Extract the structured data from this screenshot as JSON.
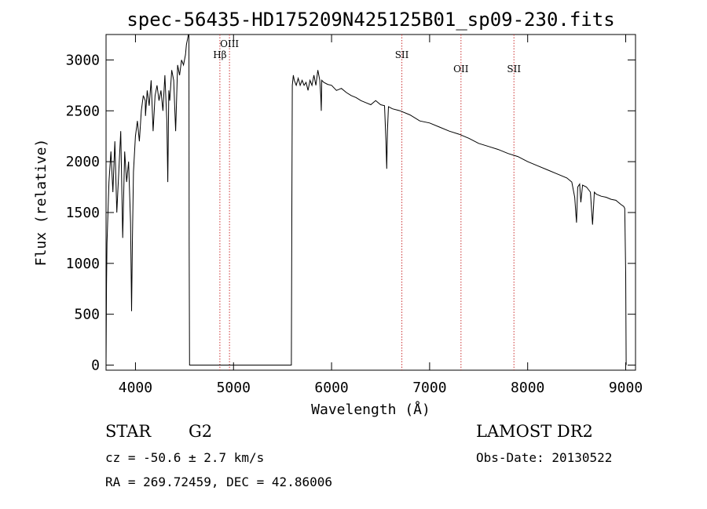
{
  "chart_data": {
    "type": "line",
    "title": "spec-56435-HD175209N425125B01_sp09-230.fits",
    "xlabel": "Wavelength (Å)",
    "ylabel": "Flux (relative)",
    "xlim": [
      3700,
      9100
    ],
    "ylim": [
      -50,
      3250
    ],
    "xticks": [
      4000,
      5000,
      6000,
      7000,
      8000,
      9000
    ],
    "yticks": [
      0,
      500,
      1000,
      1500,
      2000,
      2500,
      3000
    ],
    "grid": false,
    "line_color": "#000000",
    "marker_color": "#cc3333",
    "series": [
      {
        "name": "",
        "x": [
          3700,
          3705,
          3710,
          3730,
          3750,
          3770,
          3790,
          3810,
          3830,
          3850,
          3870,
          3890,
          3910,
          3930,
          3950,
          3960,
          3968,
          3980,
          4000,
          4020,
          4040,
          4060,
          4080,
          4100,
          4102,
          4120,
          4140,
          4160,
          4180,
          4200,
          4220,
          4240,
          4260,
          4280,
          4300,
          4320,
          4330,
          4340,
          4350,
          4370,
          4390,
          4410,
          4430,
          4450,
          4470,
          4490,
          4510,
          4520,
          4530,
          4540,
          4545,
          4548,
          4552,
          4555,
          5590,
          5595,
          5600,
          5610,
          5620,
          5640,
          5660,
          5680,
          5700,
          5720,
          5740,
          5760,
          5780,
          5800,
          5820,
          5840,
          5860,
          5880,
          5890,
          5895,
          5900,
          5920,
          5960,
          6000,
          6050,
          6100,
          6150,
          6200,
          6250,
          6300,
          6350,
          6400,
          6450,
          6500,
          6540,
          6555,
          6563,
          6570,
          6580,
          6620,
          6700,
          6800,
          6900,
          7000,
          7100,
          7200,
          7300,
          7400,
          7500,
          7600,
          7700,
          7800,
          7900,
          8000,
          8100,
          8200,
          8300,
          8400,
          8450,
          8480,
          8498,
          8510,
          8530,
          8542,
          8560,
          8600,
          8640,
          8662,
          8680,
          8700,
          8750,
          8800,
          8850,
          8900,
          8950,
          8980,
          8990,
          9000,
          9005
        ],
        "y": [
          0,
          800,
          1200,
          1800,
          2100,
          1700,
          2200,
          1500,
          1900,
          2300,
          1250,
          2100,
          1800,
          2000,
          1400,
          530,
          1200,
          1900,
          2250,
          2400,
          2200,
          2500,
          2650,
          2600,
          2450,
          2700,
          2550,
          2800,
          2300,
          2650,
          2750,
          2600,
          2700,
          2500,
          2850,
          2400,
          1800,
          2700,
          2600,
          2900,
          2800,
          2300,
          2950,
          2850,
          3000,
          2950,
          3050,
          3150,
          3200,
          3250,
          3250,
          1200,
          0,
          0,
          0,
          1500,
          2750,
          2850,
          2800,
          2750,
          2820,
          2750,
          2800,
          2750,
          2780,
          2700,
          2800,
          2750,
          2850,
          2750,
          2900,
          2800,
          2650,
          2500,
          2800,
          2780,
          2760,
          2750,
          2700,
          2720,
          2680,
          2650,
          2630,
          2600,
          2580,
          2560,
          2600,
          2560,
          2550,
          2200,
          1930,
          2300,
          2540,
          2520,
          2500,
          2460,
          2400,
          2380,
          2340,
          2300,
          2270,
          2230,
          2180,
          2150,
          2120,
          2080,
          2050,
          2000,
          1960,
          1920,
          1880,
          1840,
          1800,
          1650,
          1400,
          1750,
          1780,
          1600,
          1770,
          1750,
          1700,
          1380,
          1700,
          1680,
          1660,
          1650,
          1630,
          1620,
          1580,
          1560,
          1540,
          900,
          0
        ]
      }
    ],
    "annotations": [
      {
        "label": "Hβ",
        "x": 4861
      },
      {
        "label": "OIII",
        "x": 4959
      },
      {
        "label": "SII",
        "x": 6717
      },
      {
        "label": "OII",
        "x": 7320
      },
      {
        "label": "SII",
        "x": 7860
      }
    ]
  },
  "info": {
    "object_type": "STAR",
    "subclass": "G2",
    "survey": "LAMOST DR2",
    "cz": "cz = -50.6 ± 2.7 km/s",
    "obs_date": "Obs-Date: 20130522",
    "radec": "RA = 269.72459, DEC =  42.86006"
  }
}
